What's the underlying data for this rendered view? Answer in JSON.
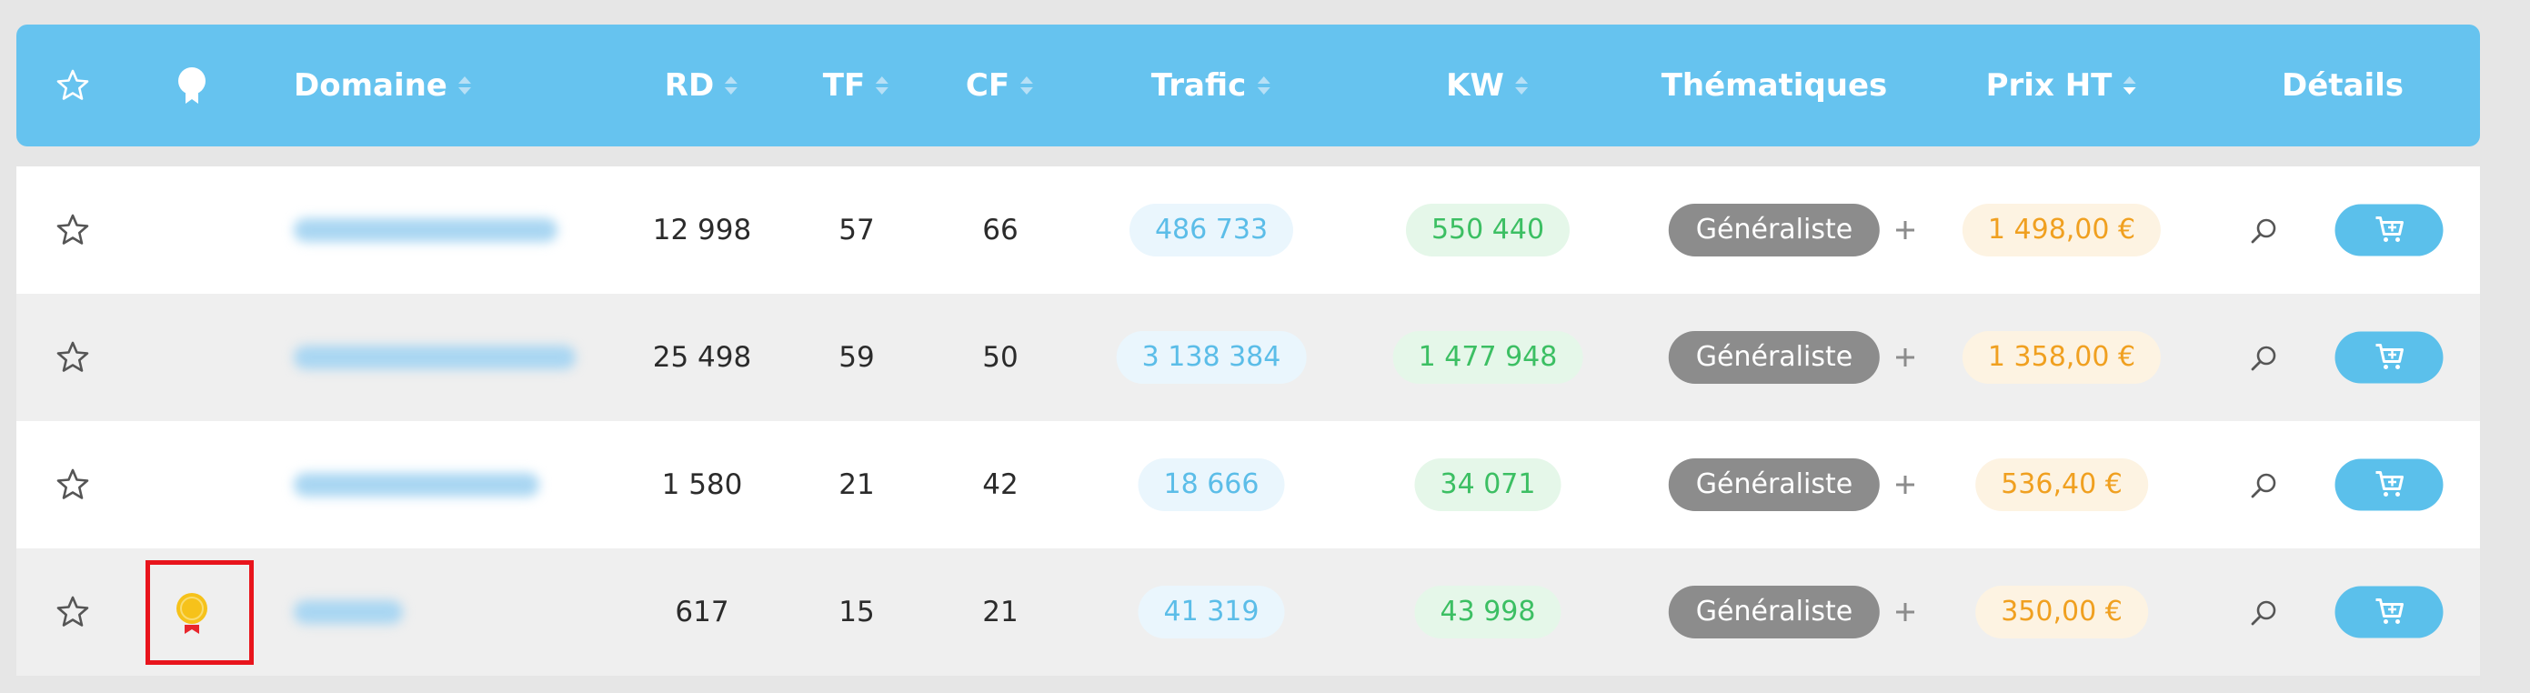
{
  "table": {
    "headers": [
      "Domaine",
      "RD",
      "TF",
      "CF",
      "Trafic",
      "KW",
      "Thématiques",
      "Prix HT",
      "Détails"
    ],
    "rows": [
      {
        "rd": "12 998",
        "tf": "57",
        "cf": "66",
        "trafic": "486 733",
        "kw": "550 440",
        "thematique": "Généraliste",
        "prix": "1 498,00 €"
      },
      {
        "rd": "25 498",
        "tf": "59",
        "cf": "50",
        "trafic": "3 138 384",
        "kw": "1 477 948",
        "thematique": "Généraliste",
        "prix": "1 358,00 €"
      },
      {
        "rd": "1 580",
        "tf": "21",
        "cf": "42",
        "trafic": "18 666",
        "kw": "34 071",
        "thematique": "Généraliste",
        "prix": "536,40 €"
      },
      {
        "rd": "617",
        "tf": "15",
        "cf": "21",
        "trafic": "41 319",
        "kw": "43 998",
        "thematique": "Généraliste",
        "prix": "350,00 €"
      }
    ]
  }
}
